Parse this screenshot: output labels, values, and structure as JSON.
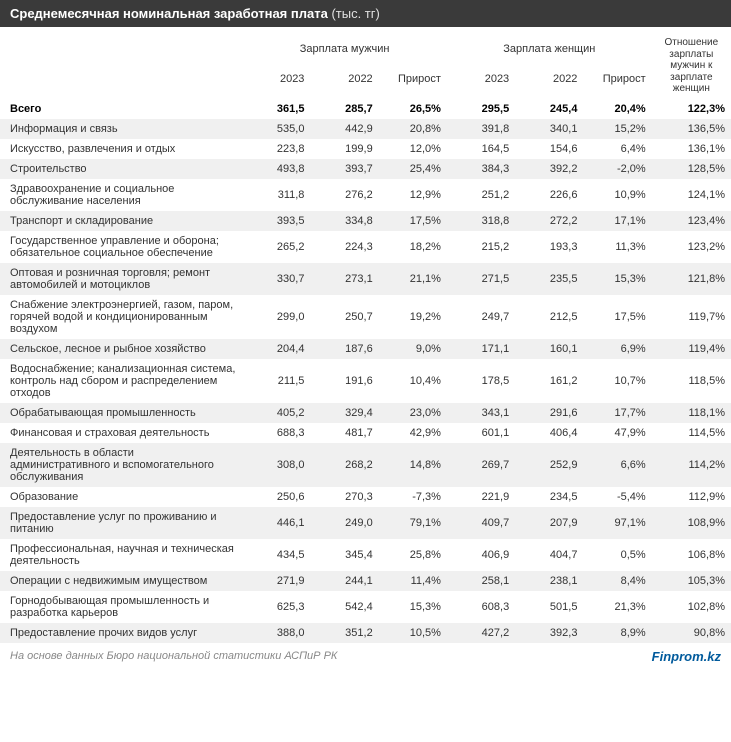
{
  "title": {
    "main": "Среднемесячная номинальная заработная плата",
    "unit": "(тыс. тг)"
  },
  "headers": {
    "group_men": "Зарплата мужчин",
    "group_women": "Зарплата женщин",
    "ratio": "Отношение зарплаты мужчин к зарплате женщин",
    "y2023": "2023",
    "y2022": "2022",
    "growth": "Прирост"
  },
  "total": {
    "label": "Всего",
    "m2023": "361,5",
    "m2022": "285,7",
    "mgrow": "26,5%",
    "w2023": "295,5",
    "w2022": "245,4",
    "wgrow": "20,4%",
    "ratio": "122,3%"
  },
  "rows": [
    {
      "label": "Информация и связь",
      "m2023": "535,0",
      "m2022": "442,9",
      "mgrow": "20,8%",
      "w2023": "391,8",
      "w2022": "340,1",
      "wgrow": "15,2%",
      "ratio": "136,5%"
    },
    {
      "label": "Искусство, развлечения и отдых",
      "m2023": "223,8",
      "m2022": "199,9",
      "mgrow": "12,0%",
      "w2023": "164,5",
      "w2022": "154,6",
      "wgrow": "6,4%",
      "ratio": "136,1%"
    },
    {
      "label": "Строительство",
      "m2023": "493,8",
      "m2022": "393,7",
      "mgrow": "25,4%",
      "w2023": "384,3",
      "w2022": "392,2",
      "wgrow": "-2,0%",
      "ratio": "128,5%"
    },
    {
      "label": "Здравоохранение и социальное обслуживание населения",
      "m2023": "311,8",
      "m2022": "276,2",
      "mgrow": "12,9%",
      "w2023": "251,2",
      "w2022": "226,6",
      "wgrow": "10,9%",
      "ratio": "124,1%"
    },
    {
      "label": "Транспорт и складирование",
      "m2023": "393,5",
      "m2022": "334,8",
      "mgrow": "17,5%",
      "w2023": "318,8",
      "w2022": "272,2",
      "wgrow": "17,1%",
      "ratio": "123,4%"
    },
    {
      "label": "Государственное управление и оборона; обязательное социальное обеспечение",
      "m2023": "265,2",
      "m2022": "224,3",
      "mgrow": "18,2%",
      "w2023": "215,2",
      "w2022": "193,3",
      "wgrow": "11,3%",
      "ratio": "123,2%"
    },
    {
      "label": "Оптовая и розничная торговля; ремонт автомобилей и мотоциклов",
      "m2023": "330,7",
      "m2022": "273,1",
      "mgrow": "21,1%",
      "w2023": "271,5",
      "w2022": "235,5",
      "wgrow": "15,3%",
      "ratio": "121,8%"
    },
    {
      "label": "Снабжение электроэнергией, газом, паром, горячей водой и кондиционированным воздухом",
      "m2023": "299,0",
      "m2022": "250,7",
      "mgrow": "19,2%",
      "w2023": "249,7",
      "w2022": "212,5",
      "wgrow": "17,5%",
      "ratio": "119,7%"
    },
    {
      "label": "Сельское, лесное и рыбное хозяйство",
      "m2023": "204,4",
      "m2022": "187,6",
      "mgrow": "9,0%",
      "w2023": "171,1",
      "w2022": "160,1",
      "wgrow": "6,9%",
      "ratio": "119,4%"
    },
    {
      "label": "Водоснабжение; канализационная система, контроль над сбором и распределением отходов",
      "m2023": "211,5",
      "m2022": "191,6",
      "mgrow": "10,4%",
      "w2023": "178,5",
      "w2022": "161,2",
      "wgrow": "10,7%",
      "ratio": "118,5%"
    },
    {
      "label": "Обрабатывающая промышленность",
      "m2023": "405,2",
      "m2022": "329,4",
      "mgrow": "23,0%",
      "w2023": "343,1",
      "w2022": "291,6",
      "wgrow": "17,7%",
      "ratio": "118,1%"
    },
    {
      "label": "Финансовая и страховая деятельность",
      "m2023": "688,3",
      "m2022": "481,7",
      "mgrow": "42,9%",
      "w2023": "601,1",
      "w2022": "406,4",
      "wgrow": "47,9%",
      "ratio": "114,5%"
    },
    {
      "label": "Деятельность в области административного и вспомогательного обслуживания",
      "m2023": "308,0",
      "m2022": "268,2",
      "mgrow": "14,8%",
      "w2023": "269,7",
      "w2022": "252,9",
      "wgrow": "6,6%",
      "ratio": "114,2%"
    },
    {
      "label": "Образование",
      "m2023": "250,6",
      "m2022": "270,3",
      "mgrow": "-7,3%",
      "w2023": "221,9",
      "w2022": "234,5",
      "wgrow": "-5,4%",
      "ratio": "112,9%"
    },
    {
      "label": "Предоставление услуг по проживанию и питанию",
      "m2023": "446,1",
      "m2022": "249,0",
      "mgrow": "79,1%",
      "w2023": "409,7",
      "w2022": "207,9",
      "wgrow": "97,1%",
      "ratio": "108,9%"
    },
    {
      "label": "Профессиональная, научная и техническая деятельность",
      "m2023": "434,5",
      "m2022": "345,4",
      "mgrow": "25,8%",
      "w2023": "406,9",
      "w2022": "404,7",
      "wgrow": "0,5%",
      "ratio": "106,8%"
    },
    {
      "label": "Операции с недвижимым имуществом",
      "m2023": "271,9",
      "m2022": "244,1",
      "mgrow": "11,4%",
      "w2023": "258,1",
      "w2022": "238,1",
      "wgrow": "8,4%",
      "ratio": "105,3%"
    },
    {
      "label": "Горнодобывающая промышленность и разработка карьеров",
      "m2023": "625,3",
      "m2022": "542,4",
      "mgrow": "15,3%",
      "w2023": "608,3",
      "w2022": "501,5",
      "wgrow": "21,3%",
      "ratio": "102,8%"
    },
    {
      "label": "Предоставление прочих видов услуг",
      "m2023": "388,0",
      "m2022": "351,2",
      "mgrow": "10,5%",
      "w2023": "427,2",
      "w2022": "392,3",
      "wgrow": "8,9%",
      "ratio": "90,8%"
    }
  ],
  "footer": {
    "source": "На основе данных Бюро национальной статистики АСПиР РК",
    "brand": "Finprom.kz"
  },
  "colors": {
    "header_bg": "#3a3a3a",
    "header_text": "#ffffff",
    "row_alt_bg": "#f0f0f0",
    "text": "#333333",
    "source_text": "#888888",
    "brand_text": "#005a9c"
  }
}
